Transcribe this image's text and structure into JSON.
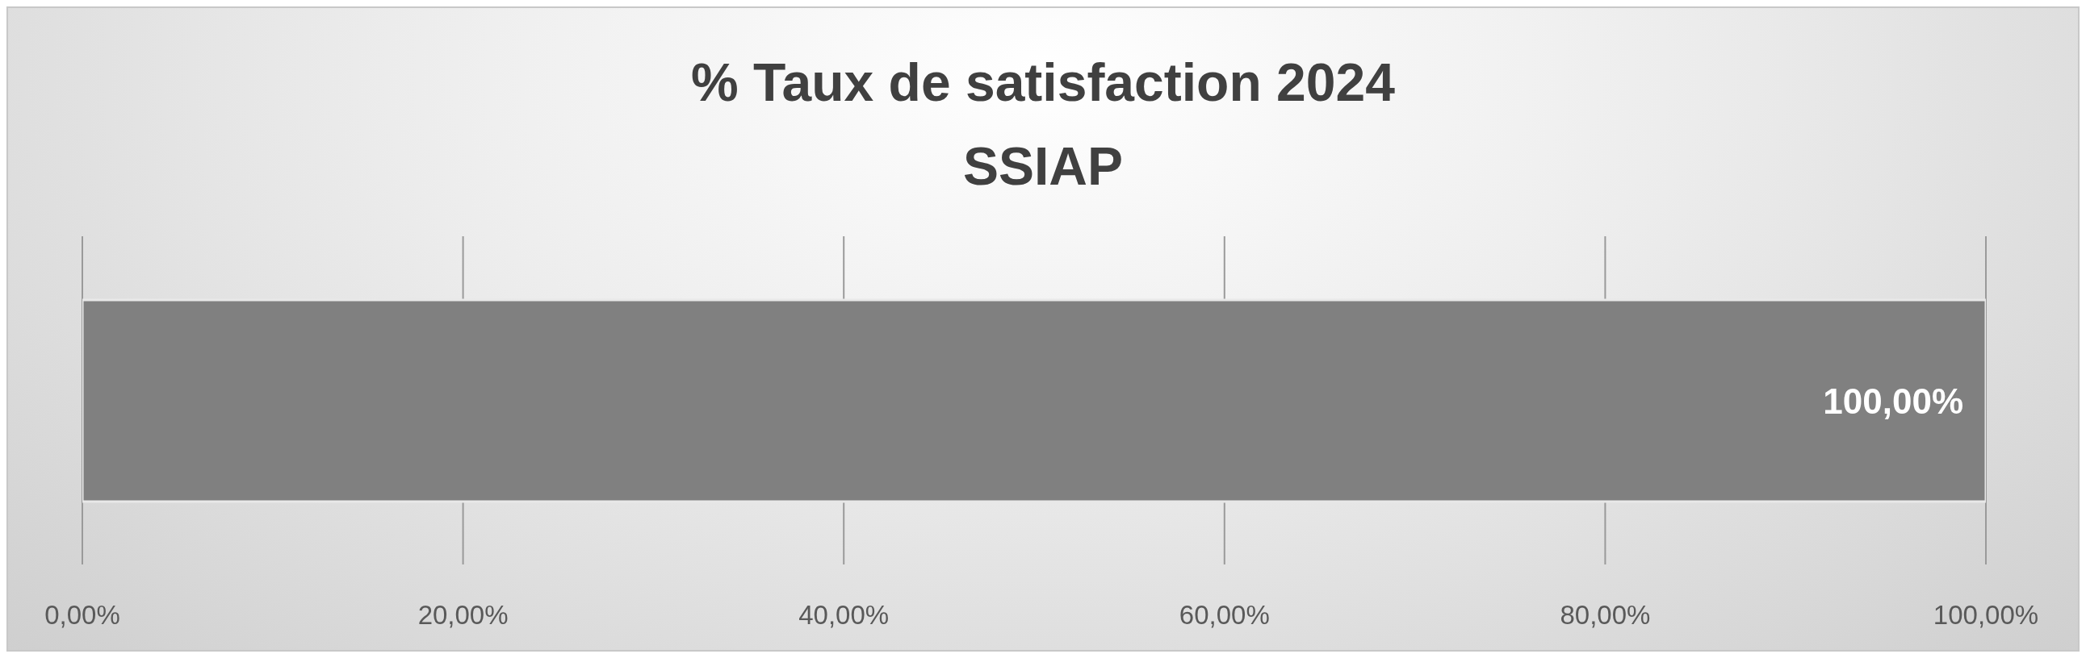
{
  "chart_data": {
    "type": "bar",
    "title": "% Taux de satisfaction 2024\nSSIAP",
    "orientation": "horizontal",
    "categories": [
      null
    ],
    "values": [
      100
    ],
    "value_labels": [
      "100,00%"
    ],
    "color": "#808080",
    "xlim": [
      0,
      100
    ],
    "xticks": [
      {
        "value": 0,
        "label": "0,00%"
      },
      {
        "value": 20,
        "label": "20,00%"
      },
      {
        "value": 40,
        "label": "40,00%"
      },
      {
        "value": 60,
        "label": "60,00%"
      },
      {
        "value": 80,
        "label": "80,00%"
      },
      {
        "value": 100,
        "label": "100,00%"
      }
    ],
    "grid": "x"
  }
}
